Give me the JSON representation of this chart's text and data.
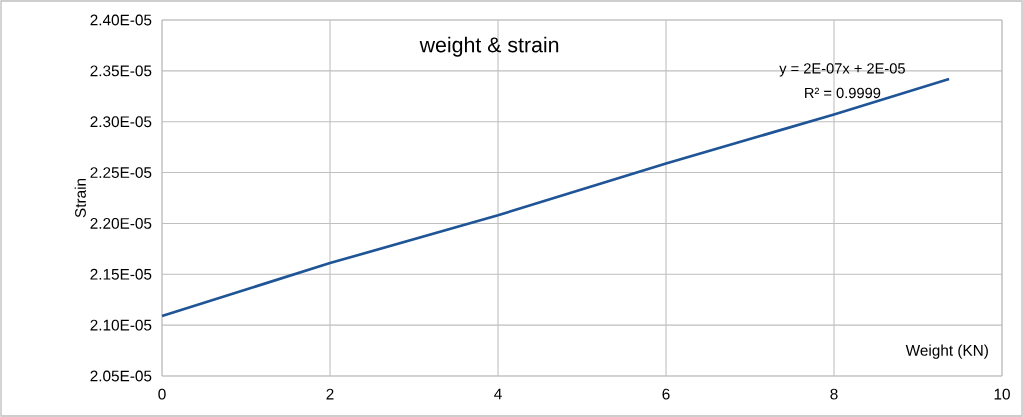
{
  "chart_data": {
    "type": "line",
    "title": "weight & strain",
    "xlabel": "Weight (KN)",
    "ylabel": "Strain",
    "x": [
      0,
      2,
      4,
      6,
      8,
      9.37
    ],
    "series": [
      {
        "color": "#1f5596",
        "values": [
          2.109e-05,
          2.161e-05,
          2.208e-05,
          2.259e-05,
          2.307e-05,
          2.342e-05
        ]
      }
    ],
    "xlim": [
      0,
      10
    ],
    "xticks": [
      0,
      2,
      4,
      6,
      8,
      10
    ],
    "ylim": [
      2.05e-05,
      2.4e-05
    ],
    "yticks": [
      {
        "value": 2.05e-05,
        "label": "2.05E-05"
      },
      {
        "value": 2.1e-05,
        "label": "2.10E-05"
      },
      {
        "value": 2.15e-05,
        "label": "2.15E-05"
      },
      {
        "value": 2.2e-05,
        "label": "2.20E-05"
      },
      {
        "value": 2.25e-05,
        "label": "2.25E-05"
      },
      {
        "value": 2.3e-05,
        "label": "2.30E-05"
      },
      {
        "value": 2.35e-05,
        "label": "2.35E-05"
      },
      {
        "value": 2.4e-05,
        "label": "2.40E-05"
      }
    ],
    "annotations": [
      "y = 2E-07x + 2E-05",
      "R² = 0.9999"
    ],
    "grid": true,
    "marker": "none",
    "line_style": "solid"
  }
}
